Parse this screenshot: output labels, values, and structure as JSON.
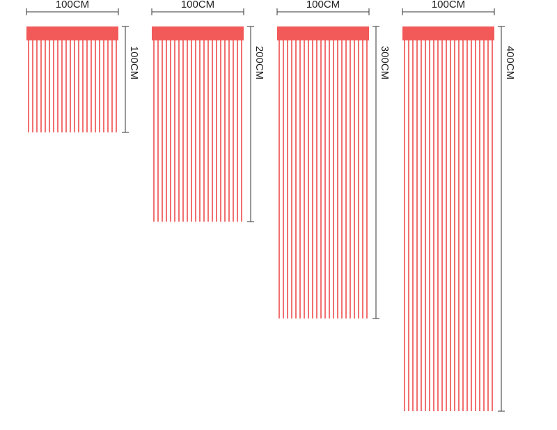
{
  "items": [
    {
      "width_label": "100CM",
      "height_label": "100CM"
    },
    {
      "width_label": "100CM",
      "height_label": "200CM"
    },
    {
      "width_label": "100CM",
      "height_label": "300CM"
    },
    {
      "width_label": "100CM",
      "height_label": "400CM"
    }
  ]
}
